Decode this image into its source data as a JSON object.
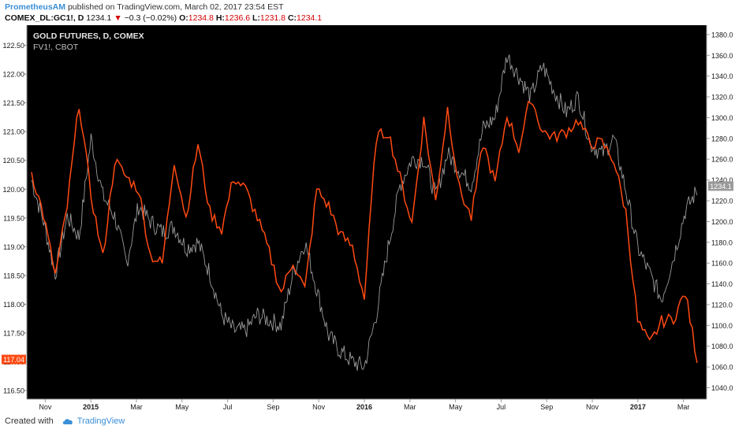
{
  "header": {
    "author": "PrometheusAM",
    "published": "published on TradingView.com, March 02, 2017 23:54 EST"
  },
  "quote": {
    "symbol": "COMEX_DL:GC1!, D",
    "last": "1234.1",
    "change": "−0.3 (−0.02%)",
    "open_label": "O:",
    "open": "1234.8",
    "high_label": "H:",
    "high": "1236.6",
    "low_label": "L:",
    "low": "1231.8",
    "close_label": "C:",
    "close": "1234.1"
  },
  "footer": {
    "created_with": "Created with",
    "brand": "TradingView"
  },
  "colors": {
    "background": "#000000",
    "gold_series": "#9a9a9a",
    "fv_series": "#ff4a12",
    "axis_text": "#1a1a1a"
  },
  "chart_data": {
    "type": "line",
    "legend": [
      "GOLD FUTURES, D, COMEX",
      "FV1!, CBOT"
    ],
    "x_ticks": [
      "Nov",
      "2015",
      "Mar",
      "May",
      "Jul",
      "Sep",
      "Nov",
      "2016",
      "Mar",
      "May",
      "Jul",
      "Sep",
      "Nov",
      "2017",
      "Mar"
    ],
    "x_range": [
      0,
      28
    ],
    "left_axis": {
      "ticks": [
        "122.50",
        "122.00",
        "121.50",
        "121.00",
        "120.50",
        "120.00",
        "119.50",
        "119.00",
        "118.50",
        "118.00",
        "117.50",
        "117.00",
        "116.50"
      ],
      "range": [
        116.35,
        122.85
      ],
      "last_value_label": "117.04",
      "last_value": 117.04
    },
    "right_axis": {
      "ticks": [
        "1380.0",
        "1360.0",
        "1340.0",
        "1320.0",
        "1300.0",
        "1280.0",
        "1260.0",
        "1240.0",
        "1220.0",
        "1200.0",
        "1180.0",
        "1160.0",
        "1140.0",
        "1120.0",
        "1100.0",
        "1080.0",
        "1060.0",
        "1040.0"
      ],
      "range": [
        1029,
        1389
      ],
      "last_value_label": "1234.1",
      "last_value": 1234.1
    },
    "series": [
      {
        "axis": "right",
        "x": [
          0,
          0.5,
          1,
          1.5,
          2,
          2.5,
          3,
          3.5,
          4,
          4.5,
          5,
          5.5,
          6,
          6.5,
          7,
          7.5,
          8,
          8.5,
          9,
          9.5,
          10,
          10.5,
          11,
          11.5,
          12,
          12.5,
          13,
          13.5,
          14,
          14.5,
          15,
          15.5,
          16,
          16.5,
          17,
          17.5,
          18,
          18.5,
          19,
          19.5,
          20,
          20.5,
          21,
          21.5,
          22,
          22.5,
          23,
          23.5,
          24,
          24.5,
          25,
          25.5,
          26,
          26.5,
          27,
          27.5,
          28
        ],
        "values": [
          1240,
          1200,
          1150,
          1205,
          1185,
          1280,
          1225,
          1205,
          1160,
          1215,
          1200,
          1190,
          1195,
          1175,
          1180,
          1150,
          1110,
          1095,
          1095,
          1110,
          1105,
          1100,
          1150,
          1180,
          1135,
          1090,
          1075,
          1065,
          1060,
          1110,
          1175,
          1235,
          1260,
          1260,
          1225,
          1265,
          1250,
          1235,
          1290,
          1300,
          1360,
          1340,
          1320,
          1350,
          1325,
          1305,
          1320,
          1275,
          1265,
          1280,
          1230,
          1175,
          1150,
          1125,
          1165,
          1210,
          1230
        ]
      },
      {
        "axis": "left",
        "x": [
          0,
          0.5,
          1,
          1.5,
          2,
          2.5,
          3,
          3.5,
          4,
          4.5,
          5,
          5.5,
          6,
          6.5,
          7,
          7.5,
          8,
          8.5,
          9,
          9.5,
          10,
          10.5,
          11,
          11.5,
          12,
          12.5,
          13,
          13.5,
          14,
          14.5,
          15,
          15.5,
          16,
          16.5,
          17,
          17.5,
          18,
          18.5,
          19,
          19.5,
          20,
          20.5,
          21,
          21.5,
          22,
          22.5,
          23,
          23.5,
          24,
          24.5,
          25,
          25.5,
          26,
          26.5,
          27,
          27.5,
          28
        ],
        "values": [
          120.3,
          119.55,
          118.5,
          119.7,
          121.5,
          119.9,
          118.8,
          120.5,
          120.2,
          120.0,
          118.85,
          118.7,
          120.5,
          119.5,
          120.8,
          119.6,
          119.3,
          120.2,
          120.0,
          119.5,
          118.9,
          118.2,
          118.75,
          118.25,
          120.0,
          119.7,
          119.2,
          119.0,
          118.1,
          120.9,
          121.0,
          120.2,
          119.4,
          121.2,
          119.8,
          121.4,
          120.0,
          119.5,
          120.8,
          120.1,
          121.3,
          120.7,
          121.6,
          121.0,
          120.9,
          121.0,
          121.2,
          120.8,
          120.8,
          120.5,
          119.6,
          117.7,
          117.3,
          117.7,
          117.75,
          118.2,
          117.04
        ]
      }
    ]
  }
}
